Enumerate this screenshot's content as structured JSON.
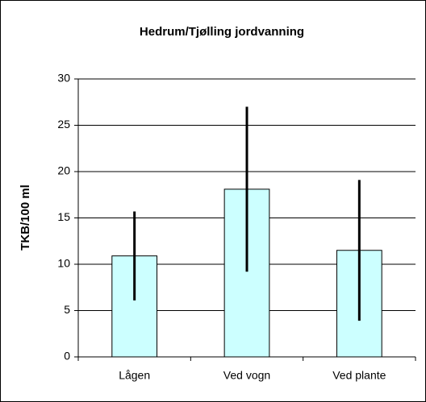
{
  "chart_data": {
    "type": "bar",
    "title": "Hedrum/Tjølling jordvanning",
    "y_label": "TKB/100 ml",
    "categories": [
      "Lågen",
      "Ved vogn",
      "Ved plante"
    ],
    "values": [
      10.9,
      18.1,
      11.5
    ],
    "errors": [
      4.8,
      8.9,
      7.6
    ],
    "color": "#ccffff",
    "error_color": "#000000",
    "ylim": [
      0,
      30
    ],
    "yticks": [
      0,
      5,
      10,
      15,
      20,
      25,
      30
    ],
    "grid": true
  }
}
